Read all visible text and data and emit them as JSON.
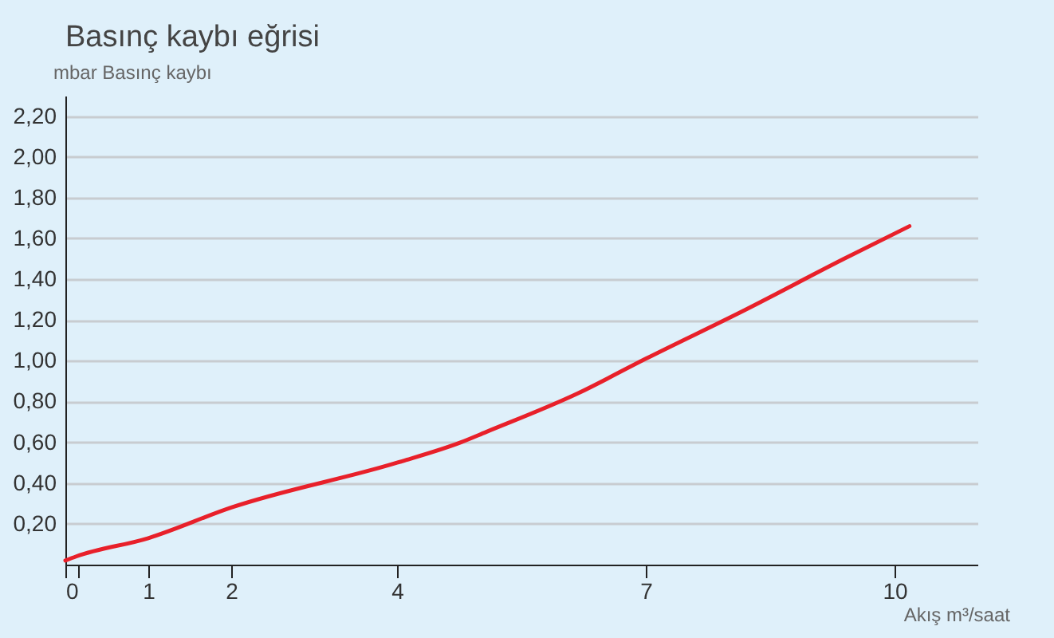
{
  "chart_data": {
    "type": "line",
    "title": "Basınç kaybı eğrisi",
    "ylabel": "mbar Basınç kaybı",
    "xlabel": "Akış m³/saat",
    "x": [
      0,
      0.13,
      1,
      2,
      4,
      4.77,
      5.07,
      6.18,
      7,
      8.2,
      9.39,
      10.18
    ],
    "series": [
      {
        "color": "#e8202a",
        "values": [
          0.02,
          0.04,
          0.13,
          0.28,
          0.5,
          0.6,
          0.65,
          0.84,
          1.01,
          1.25,
          1.5,
          1.66
        ]
      }
    ],
    "xlim": [
      0,
      11
    ],
    "xticks": [
      0,
      {
        "value": 0.15,
        "label": null
      },
      1,
      2,
      4,
      7,
      10
    ],
    "ylim": [
      0,
      2.3
    ],
    "yticks": [
      {
        "value": 0.2,
        "label": "0,20"
      },
      {
        "value": 0.4,
        "label": "0,40"
      },
      {
        "value": 0.6,
        "label": "0,60"
      },
      {
        "value": 0.8,
        "label": "0,80"
      },
      {
        "value": 1.0,
        "label": "1,00"
      },
      {
        "value": 1.2,
        "label": "1,20"
      },
      {
        "value": 1.4,
        "label": "1,40"
      },
      {
        "value": 1.6,
        "label": "1,60"
      },
      {
        "value": 1.8,
        "label": "1,80"
      },
      {
        "value": 2.0,
        "label": "2,00"
      },
      {
        "value": 2.2,
        "label": "2,20"
      }
    ],
    "grid": "y",
    "marker": "none",
    "line_style": "solid"
  }
}
